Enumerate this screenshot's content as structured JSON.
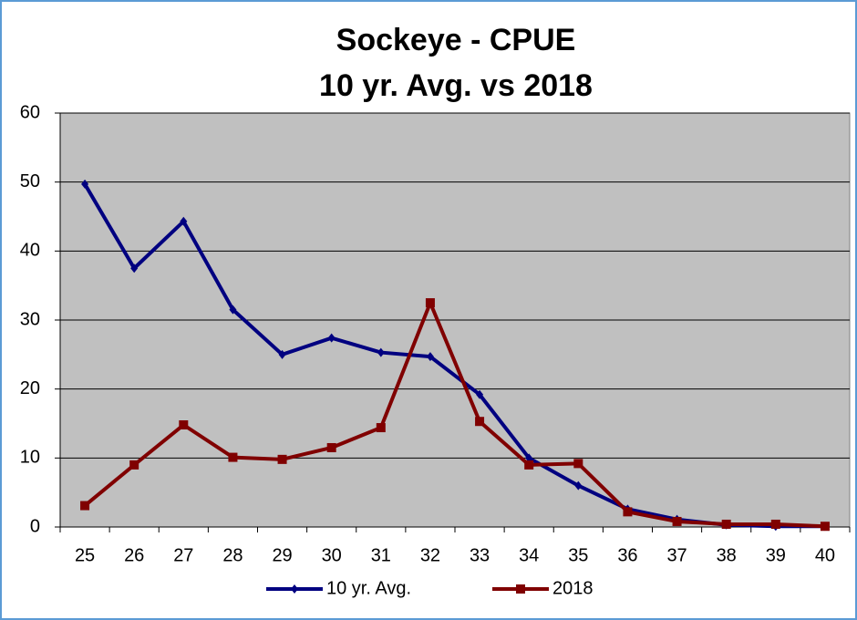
{
  "chart_data": {
    "type": "line",
    "title": "Sockeye - CPUE",
    "subtitle": "10 yr. Avg. vs 2018",
    "categories": [
      "25",
      "26",
      "27",
      "28",
      "29",
      "30",
      "31",
      "32",
      "33",
      "34",
      "35",
      "36",
      "37",
      "38",
      "39",
      "40"
    ],
    "series": [
      {
        "name": "10 yr. Avg.",
        "color": "#000080",
        "marker": "diamond",
        "values": [
          49.7,
          37.5,
          44.3,
          31.5,
          25,
          27.4,
          25.3,
          24.7,
          19.2,
          10,
          6,
          2.6,
          1.1,
          0.3,
          0.1,
          0.1
        ]
      },
      {
        "name": "2018",
        "color": "#800000",
        "marker": "square",
        "values": [
          3.1,
          9,
          14.8,
          10.1,
          9.8,
          11.5,
          14.4,
          32.5,
          15.3,
          9,
          9.2,
          2.2,
          0.8,
          0.4,
          0.4,
          0.1
        ]
      }
    ],
    "ylim": [
      0,
      60
    ],
    "yticks": [
      0,
      10,
      20,
      30,
      40,
      50,
      60
    ],
    "grid": true,
    "legend": "bottom"
  }
}
